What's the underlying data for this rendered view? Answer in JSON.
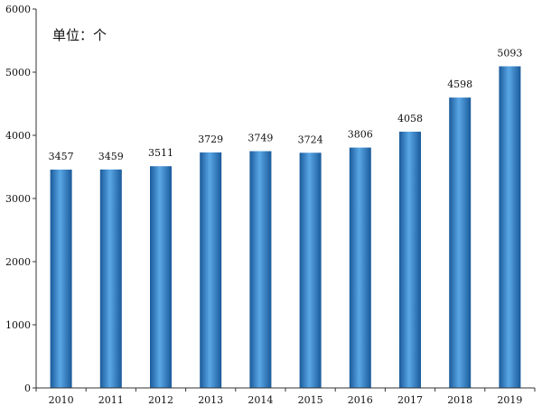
{
  "chart_data": {
    "type": "bar",
    "unit_label": "单位：个",
    "categories": [
      "2010",
      "2011",
      "2012",
      "2013",
      "2014",
      "2015",
      "2016",
      "2017",
      "2018",
      "2019"
    ],
    "values": [
      3457,
      3459,
      3511,
      3729,
      3749,
      3724,
      3806,
      4058,
      4598,
      5093
    ],
    "data_labels": [
      "3457",
      "3459",
      "3511",
      "3729",
      "3749",
      "3724",
      "3806",
      "4058",
      "4598",
      "5093"
    ],
    "ylim": [
      0,
      6000
    ],
    "yticks": [
      0,
      1000,
      2000,
      3000,
      4000,
      5000,
      6000
    ],
    "ytick_labels": [
      "0",
      "1000",
      "2000",
      "3000",
      "4000",
      "5000",
      "6000"
    ],
    "grid": false,
    "legend": "none",
    "colors": {
      "bar_dark": "#1a5a9a",
      "bar_mid": "#2f7fc4",
      "bar_light": "#5aa7e6"
    }
  }
}
